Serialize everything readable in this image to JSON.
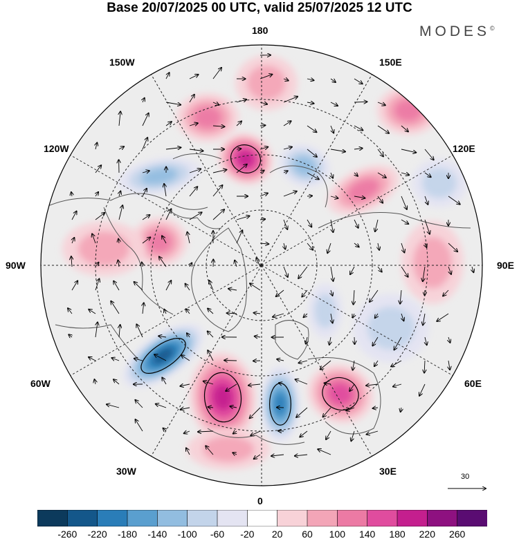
{
  "title": "Base 20/07/2025 00 UTC, valid 25/07/2025 12 UTC",
  "brand": "MODES",
  "brand_mark": "©",
  "longitude_labels": {
    "n180": "180",
    "w150": "150W",
    "e150": "150E",
    "w120": "120W",
    "e120": "120E",
    "w90": "90W",
    "e90": "90E",
    "w60": "60W",
    "e60": "60E",
    "w30": "30W",
    "e30": "30E",
    "s0": "0"
  },
  "vector_scale_label": "30",
  "colorbar": {
    "tick_labels": [
      "-260",
      "-220",
      "-180",
      "-140",
      "-100",
      "-60",
      "-20",
      "20",
      "60",
      "100",
      "140",
      "180",
      "220",
      "260"
    ],
    "colors": [
      "#0c3a5c",
      "#14578a",
      "#2a7db8",
      "#5a9fcf",
      "#92bde0",
      "#c3d4ea",
      "#e4e4f2",
      "#ffffff",
      "#f8d2d8",
      "#f3a5b7",
      "#ec7aa4",
      "#e04c9e",
      "#c41f8e",
      "#8e1180",
      "#5a0c72"
    ]
  },
  "anomaly_cells": [
    {
      "name": "anomaly-cell-north-atlantic-low",
      "value": -220
    },
    {
      "name": "anomaly-cell-greenland-high",
      "value": 180
    },
    {
      "name": "anomaly-cell-scandinavia-low",
      "value": -200
    },
    {
      "name": "anomaly-cell-russia-high",
      "value": 140
    },
    {
      "name": "anomaly-cell-chukchi-high",
      "value": 180
    },
    {
      "name": "anomaly-cell-beaufort-low",
      "value": -100
    },
    {
      "name": "anomaly-cell-bering-high",
      "value": 100
    },
    {
      "name": "anomaly-cell-hudson-bay-high",
      "value": 100
    },
    {
      "name": "anomaly-cell-canada-high",
      "value": 60
    },
    {
      "name": "anomaly-cell-alaska-low",
      "value": -100
    },
    {
      "name": "anomaly-cell-kamchatka-high",
      "value": 100
    },
    {
      "name": "anomaly-cell-east-siberia-high",
      "value": 100
    },
    {
      "name": "anomaly-cell-siberia-high",
      "value": 60
    },
    {
      "name": "anomaly-cell-central-asia-low",
      "value": -60
    },
    {
      "name": "anomaly-cell-laptev-low",
      "value": -60
    },
    {
      "name": "anomaly-cell-pacific-high",
      "value": 60
    },
    {
      "name": "anomaly-cell-atlantic-high",
      "value": 60
    },
    {
      "name": "anomaly-cell-okhotsk-low",
      "value": -60
    }
  ]
}
